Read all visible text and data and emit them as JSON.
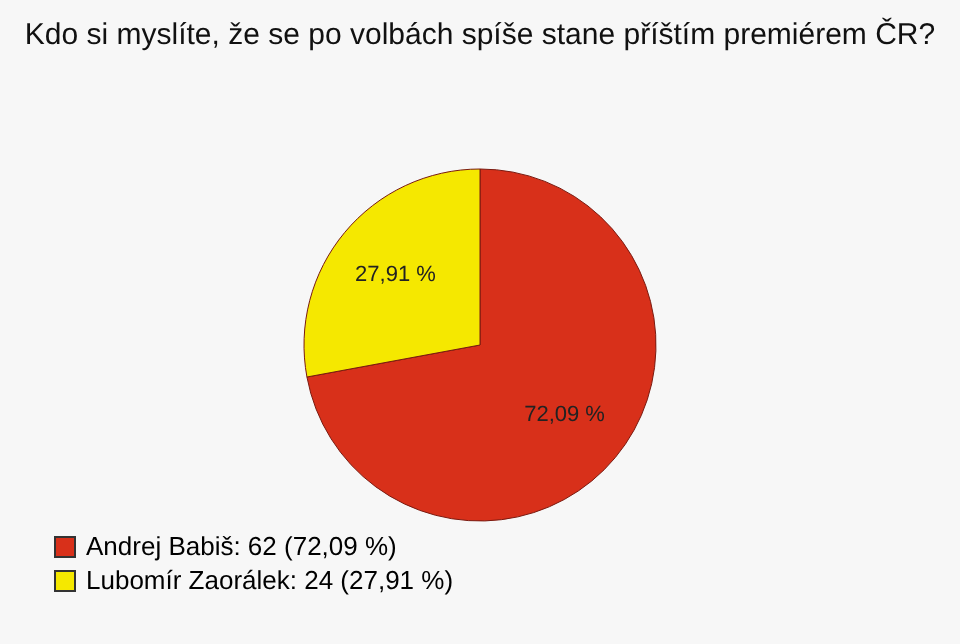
{
  "chart_data": {
    "type": "pie",
    "title": "Kdo si myslíte, že se po volbách spíše stane příštím premiérem ČR?",
    "categories": [
      "Andrej Babiš: 62 (72,09 %)",
      "Lubomír Zaorálek: 24 (27,91 %)"
    ],
    "values": [
      72.09,
      27.91
    ],
    "colors": [
      "#d8301a",
      "#f5e800"
    ],
    "value_labels": [
      "72,09 %",
      "27,91 %"
    ],
    "legend": "bottom left"
  }
}
